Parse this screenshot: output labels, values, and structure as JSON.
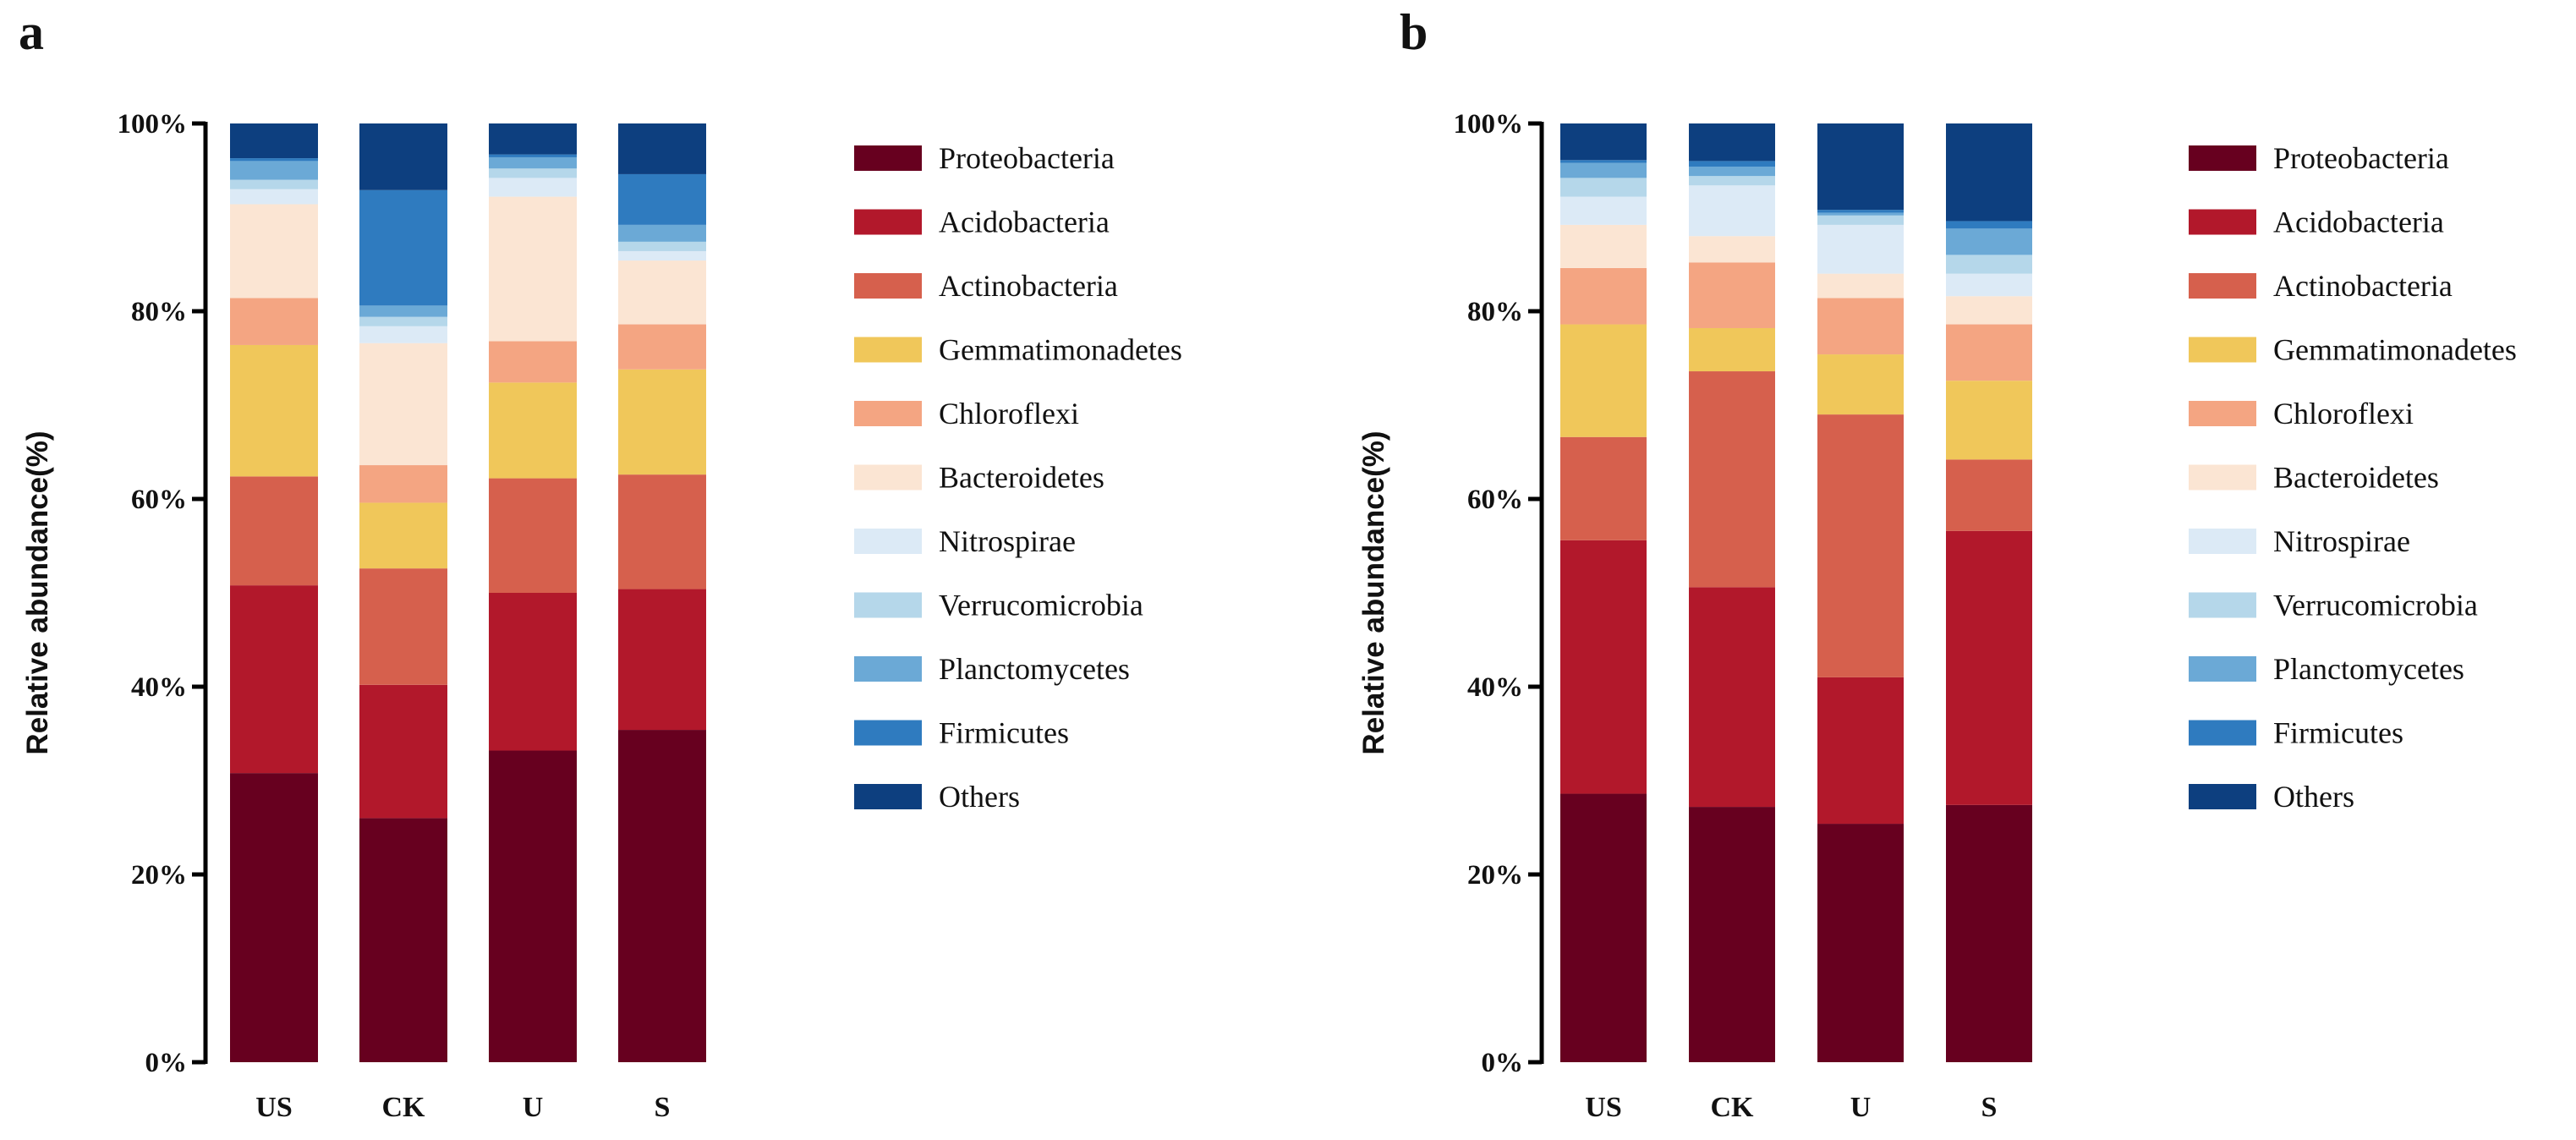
{
  "colors": {
    "Proteobacteria": "#67001f",
    "Acidobacteria": "#b2182b",
    "Actinobacteria": "#d6604d",
    "Gemmatimonadetes": "#f0c75a",
    "Chloroflexi": "#f4a582",
    "Bacteroidetes": "#fbe5d3",
    "Nitrospirae": "#dceaf6",
    "Verrucomicrobia": "#b5d7ea",
    "Planctomycetes": "#6ba9d6",
    "Firmicutes": "#2f7bbf",
    "Others": "#0d3f7f"
  },
  "chart_data": [
    {
      "type": "bar",
      "stacked": true,
      "panel_label": "a",
      "title": "",
      "xlabel": "",
      "ylabel": "Relative abundance(%)",
      "ylim": [
        0,
        100
      ],
      "yticks": [
        "0%",
        "20%",
        "40%",
        "60%",
        "80%",
        "100%"
      ],
      "categories": [
        "US",
        "CK",
        "U",
        "S"
      ],
      "legend_position": "right",
      "series": [
        {
          "name": "Proteobacteria",
          "values": [
            30.8,
            26.0,
            33.2,
            35.4
          ]
        },
        {
          "name": "Acidobacteria",
          "values": [
            20.0,
            14.2,
            16.8,
            15.0
          ]
        },
        {
          "name": "Actinobacteria",
          "values": [
            11.6,
            12.4,
            12.2,
            12.2
          ]
        },
        {
          "name": "Gemmatimonadetes",
          "values": [
            14.0,
            7.0,
            10.2,
            11.2
          ]
        },
        {
          "name": "Chloroflexi",
          "values": [
            5.0,
            4.0,
            4.4,
            4.8
          ]
        },
        {
          "name": "Bacteroidetes",
          "values": [
            10.0,
            13.0,
            15.4,
            6.8
          ]
        },
        {
          "name": "Nitrospirae",
          "values": [
            1.6,
            1.8,
            2.0,
            1.0
          ]
        },
        {
          "name": "Verrucomicrobia",
          "values": [
            1.0,
            1.0,
            1.0,
            1.0
          ]
        },
        {
          "name": "Planctomycetes",
          "values": [
            2.0,
            1.2,
            1.2,
            1.8
          ]
        },
        {
          "name": "Firmicutes",
          "values": [
            0.3,
            12.3,
            0.3,
            5.4
          ]
        },
        {
          "name": "Others",
          "values": [
            3.7,
            7.1,
            3.3,
            5.4
          ]
        }
      ]
    },
    {
      "type": "bar",
      "stacked": true,
      "panel_label": "b",
      "title": "",
      "xlabel": "",
      "ylabel": "Relative abundance(%)",
      "ylim": [
        0,
        100
      ],
      "yticks": [
        "0%",
        "20%",
        "40%",
        "60%",
        "80%",
        "100%"
      ],
      "categories": [
        "US",
        "CK",
        "U",
        "S"
      ],
      "legend_position": "right",
      "series": [
        {
          "name": "Proteobacteria",
          "values": [
            28.6,
            27.2,
            25.4,
            27.4
          ]
        },
        {
          "name": "Acidobacteria",
          "values": [
            27.0,
            23.4,
            15.6,
            29.2
          ]
        },
        {
          "name": "Actinobacteria",
          "values": [
            11.0,
            23.0,
            28.0,
            7.6
          ]
        },
        {
          "name": "Gemmatimonadetes",
          "values": [
            12.0,
            4.6,
            6.4,
            8.4
          ]
        },
        {
          "name": "Chloroflexi",
          "values": [
            6.0,
            7.0,
            6.0,
            6.0
          ]
        },
        {
          "name": "Bacteroidetes",
          "values": [
            4.6,
            2.8,
            2.6,
            3.0
          ]
        },
        {
          "name": "Nitrospirae",
          "values": [
            3.0,
            5.4,
            5.2,
            2.4
          ]
        },
        {
          "name": "Verrucomicrobia",
          "values": [
            2.0,
            1.0,
            1.0,
            2.0
          ]
        },
        {
          "name": "Planctomycetes",
          "values": [
            1.6,
            1.0,
            0.3,
            2.8
          ]
        },
        {
          "name": "Firmicutes",
          "values": [
            0.3,
            0.6,
            0.3,
            0.8
          ]
        },
        {
          "name": "Others",
          "values": [
            3.9,
            4.0,
            9.2,
            10.4
          ]
        }
      ]
    }
  ]
}
